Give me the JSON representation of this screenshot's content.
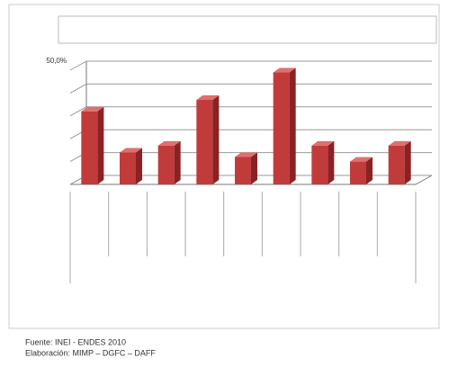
{
  "chart_data": {
    "type": "bar3d",
    "categories": [
      null,
      null,
      null,
      null,
      null,
      null,
      null,
      null,
      null
    ],
    "values": [
      32,
      14,
      17,
      37,
      12,
      49,
      17,
      10,
      17
    ],
    "color": "#c23b3b",
    "ylim": [
      0,
      50
    ],
    "yticks": [
      {
        "value": 0,
        "label": null
      },
      {
        "value": 10,
        "label": null
      },
      {
        "value": 20,
        "label": null
      },
      {
        "value": 30,
        "label": null
      },
      {
        "value": 40,
        "label": null
      },
      {
        "value": 50,
        "label": "50,0%"
      }
    ],
    "grid": true
  },
  "footer": {
    "source": "Fuente: INEI - ENDES 2010",
    "credits": "Elaboración: MIMP – DGFC – DAFF"
  }
}
